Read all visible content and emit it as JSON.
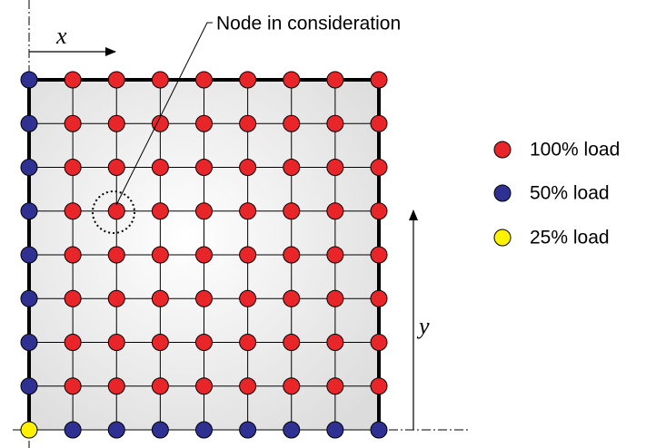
{
  "annotation": "Node in consideration",
  "axes": {
    "x": "x",
    "y": "y"
  },
  "legend": [
    {
      "label": "100% load"
    },
    {
      "label": "50% load"
    },
    {
      "label": "25% load"
    }
  ]
}
